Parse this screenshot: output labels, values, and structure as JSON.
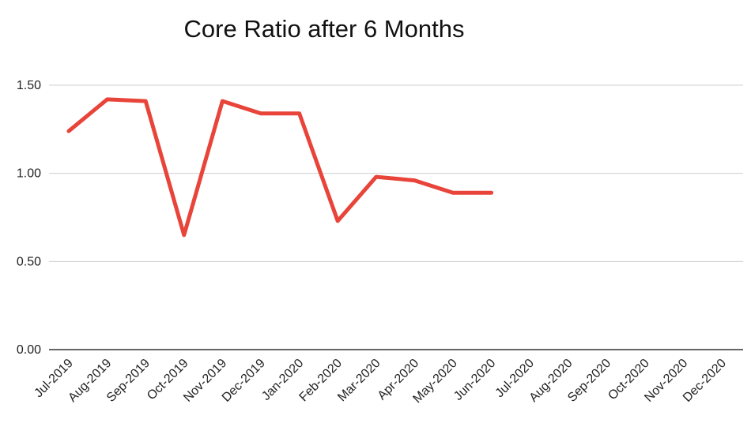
{
  "chart_data": {
    "type": "line",
    "title": "Core Ratio after 6 Months",
    "xlabel": "",
    "ylabel": "",
    "categories": [
      "Jul-2019",
      "Aug-2019",
      "Sep-2019",
      "Oct-2019",
      "Nov-2019",
      "Dec-2019",
      "Jan-2020",
      "Feb-2020",
      "Mar-2020",
      "Apr-2020",
      "May-2020",
      "Jun-2020",
      "Jul-2020",
      "Aug-2020",
      "Sep-2020",
      "Oct-2020",
      "Nov-2020",
      "Dec-2020"
    ],
    "series": [
      {
        "values": [
          1.24,
          1.42,
          1.41,
          0.65,
          1.41,
          1.34,
          1.34,
          0.73,
          0.98,
          0.96,
          0.89,
          0.89,
          null,
          null,
          null,
          null,
          null,
          null
        ]
      }
    ],
    "yticks": [
      "0.00",
      "0.50",
      "1.00",
      "1.50"
    ],
    "ytick_values": [
      0,
      0.5,
      1.0,
      1.5
    ],
    "ylim": [
      0,
      1.5
    ],
    "grid": true,
    "legend": "none",
    "colors": {
      "line": "#e8443a"
    }
  }
}
